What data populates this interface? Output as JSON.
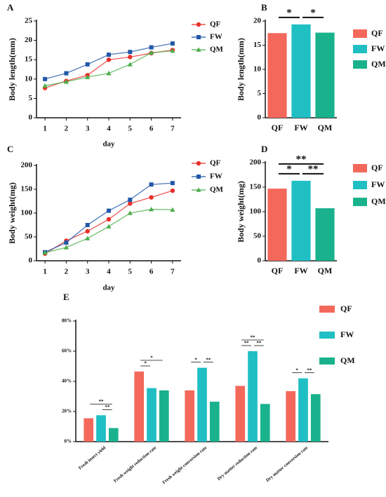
{
  "chart_data": [
    {
      "type": "line",
      "panel": "A",
      "ylabel": "Body length(mm)",
      "xlabel": "day",
      "x": [
        1,
        2,
        3,
        4,
        5,
        6,
        7
      ],
      "xlim": [
        0.6,
        7.4
      ],
      "xticks": [
        1,
        2,
        3,
        4,
        5,
        6,
        7
      ],
      "ylim": [
        0,
        25
      ],
      "yticks": [
        0,
        5,
        10,
        15,
        20,
        25
      ],
      "series": [
        {
          "name": "QF",
          "color": "#e8302a",
          "marker": "circle",
          "values": [
            7.7,
            9.5,
            11,
            15,
            15.7,
            16.7,
            17.5
          ]
        },
        {
          "name": "FW",
          "color": "#2257a8",
          "marker": "square",
          "values": [
            10,
            11.5,
            13.8,
            16.3,
            17,
            18.2,
            19.2
          ]
        },
        {
          "name": "QM",
          "color": "#4cae4c",
          "marker": "triangle",
          "values": [
            8.3,
            9.3,
            10.5,
            11.5,
            13.8,
            16.8,
            17.3
          ]
        }
      ]
    },
    {
      "type": "bar",
      "panel": "B",
      "ylabel": "Body length(mm)",
      "categories": [
        "QF",
        "FW",
        "QM"
      ],
      "values": [
        17.5,
        19.3,
        17.6
      ],
      "colors": [
        "#f4685c",
        "#1fbfc4",
        "#19b28c"
      ],
      "ylim": [
        0,
        20
      ],
      "yticks": [
        0,
        5,
        10,
        15,
        20
      ],
      "annotations": [
        {
          "text": "*",
          "between": [
            0,
            1
          ]
        },
        {
          "text": "*",
          "between": [
            1,
            2
          ]
        }
      ]
    },
    {
      "type": "line",
      "panel": "C",
      "ylabel": "Body weight(mg)",
      "xlabel": "day",
      "x": [
        1,
        2,
        3,
        4,
        5,
        6,
        7
      ],
      "xlim": [
        0.6,
        7.4
      ],
      "xticks": [
        1,
        2,
        3,
        4,
        5,
        6,
        7
      ],
      "ylim": [
        0,
        200
      ],
      "yticks": [
        0,
        50,
        100,
        150,
        200
      ],
      "series": [
        {
          "name": "QF",
          "color": "#e8302a",
          "marker": "circle",
          "values": [
            15,
            42,
            62,
            87,
            120,
            133,
            147
          ]
        },
        {
          "name": "FW",
          "color": "#2257a8",
          "marker": "square",
          "values": [
            18,
            38,
            75,
            105,
            128,
            160,
            163
          ]
        },
        {
          "name": "QM",
          "color": "#4cae4c",
          "marker": "triangle",
          "values": [
            17,
            28,
            47,
            72,
            100,
            108,
            107
          ]
        }
      ]
    },
    {
      "type": "bar",
      "panel": "D",
      "ylabel": "Body weight(mg)",
      "categories": [
        "QF",
        "FW",
        "QM"
      ],
      "values": [
        147,
        163,
        107
      ],
      "colors": [
        "#f4685c",
        "#1fbfc4",
        "#19b28c"
      ],
      "ylim": [
        0,
        200
      ],
      "yticks": [
        0,
        50,
        100,
        150,
        200
      ],
      "annotations": [
        {
          "text": "*",
          "between": [
            0,
            1
          ]
        },
        {
          "text": "**",
          "between": [
            1,
            2
          ]
        },
        {
          "text": "**",
          "between": [
            0,
            2
          ]
        }
      ]
    },
    {
      "type": "groupedbar",
      "panel": "E",
      "categories": [
        "Fresh insect yield",
        "Fresh weight reduction rate",
        "Fresh weight conversion rate",
        "Dry matter reduction rate",
        "Dry matter conversion rate"
      ],
      "ylim": [
        0,
        80
      ],
      "yticks": [
        {
          "value": 0,
          "label": "0%"
        },
        {
          "value": 20,
          "label": "20%"
        },
        {
          "value": 40,
          "label": "40%"
        },
        {
          "value": 60,
          "label": "60%"
        },
        {
          "value": 80,
          "label": "80%"
        }
      ],
      "series": [
        {
          "name": "QF",
          "color": "#f4685c",
          "values": [
            15.5,
            46.5,
            34,
            37,
            33.5
          ]
        },
        {
          "name": "FW",
          "color": "#1fbfc4",
          "values": [
            17.5,
            35.5,
            49,
            60,
            42
          ]
        },
        {
          "name": "QM",
          "color": "#19b28c",
          "values": [
            9,
            34,
            26.5,
            25,
            31.5
          ]
        }
      ],
      "annotations": [
        {
          "category": 0,
          "text": "**",
          "between": [
            1,
            2
          ]
        },
        {
          "category": 0,
          "text": "**",
          "between": [
            0,
            2
          ]
        },
        {
          "category": 1,
          "text": "*",
          "between": [
            0,
            1
          ]
        },
        {
          "category": 1,
          "text": "*",
          "between": [
            0,
            2
          ]
        },
        {
          "category": 2,
          "text": "*",
          "between": [
            0,
            1
          ]
        },
        {
          "category": 2,
          "text": "**",
          "between": [
            1,
            2
          ]
        },
        {
          "category": 3,
          "text": "**",
          "between": [
            1,
            2
          ]
        },
        {
          "category": 3,
          "text": "**",
          "between": [
            0,
            1
          ]
        },
        {
          "category": 3,
          "text": "**",
          "between": [
            0,
            2
          ]
        },
        {
          "category": 4,
          "text": "*",
          "between": [
            0,
            1
          ]
        },
        {
          "category": 4,
          "text": "**",
          "between": [
            1,
            2
          ]
        }
      ]
    }
  ]
}
